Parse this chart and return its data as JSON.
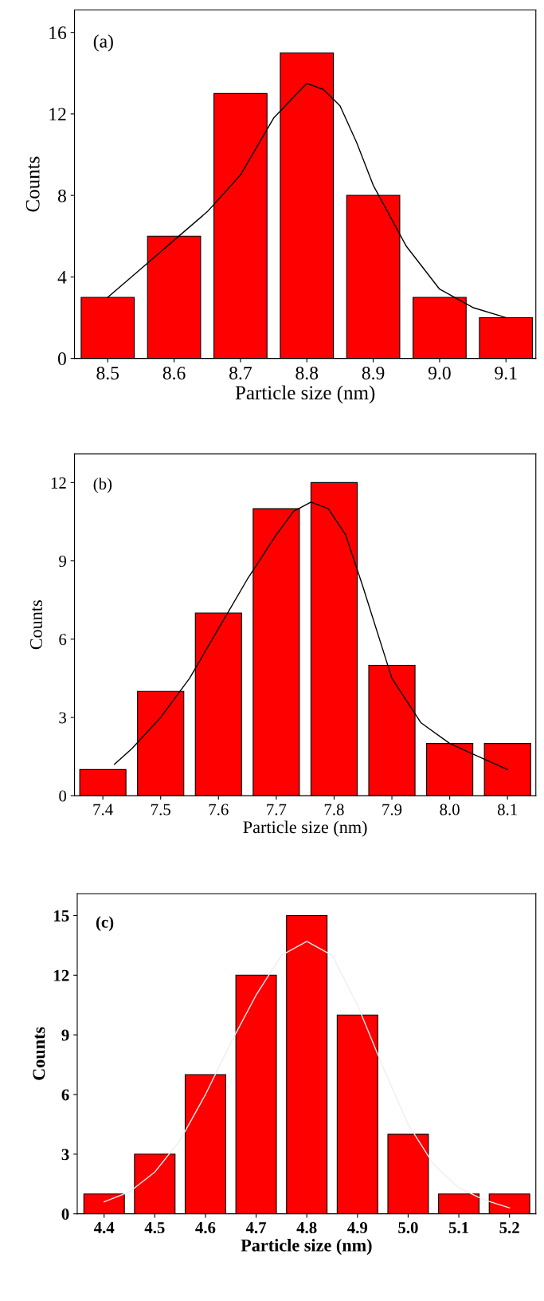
{
  "chart_data": [
    {
      "type": "bar",
      "annotations": [
        "(a)"
      ],
      "xlabel": "Particle size (nm)",
      "ylabel": "Counts",
      "x": [
        8.5,
        8.6,
        8.7,
        8.8,
        8.9,
        9.0,
        9.1
      ],
      "xlim": [
        8.45,
        9.145
      ],
      "xticks": [
        8.5,
        8.6,
        8.7,
        8.8,
        8.9,
        {
          "value": 9.0,
          "label": "9.0"
        },
        9.1
      ],
      "ylim": [
        0,
        17.1
      ],
      "yticks": [
        0,
        4,
        8,
        12,
        16
      ],
      "grid": false,
      "legend": false,
      "series": [
        {
          "color": "#ff0000",
          "values": [
            3,
            6,
            13,
            15,
            8,
            3,
            2
          ]
        },
        {
          "type": "line",
          "color": "#000000",
          "x": [
            8.5,
            8.55,
            8.6,
            8.65,
            8.7,
            8.75,
            8.8,
            8.825,
            8.85,
            8.875,
            8.9,
            8.95,
            9.0,
            9.05,
            9.1
          ],
          "values": [
            3,
            4.4,
            5.8,
            7.2,
            9,
            11.8,
            13.5,
            13.2,
            12.4,
            10.6,
            8.5,
            5.5,
            3.4,
            2.5,
            2
          ]
        }
      ]
    },
    {
      "type": "bar",
      "annotations": [
        "(b)"
      ],
      "xlabel": "Particle size (nm)",
      "ylabel": "Counts",
      "x": [
        7.4,
        7.5,
        7.6,
        7.7,
        7.8,
        7.9,
        8.0,
        8.1
      ],
      "xlim": [
        7.351,
        8.149
      ],
      "xticks": [
        7.4,
        7.5,
        7.6,
        7.7,
        7.8,
        7.9,
        {
          "value": 8.0,
          "label": "8.0"
        },
        8.1
      ],
      "ylim": [
        0,
        13.1
      ],
      "yticks": [
        0,
        3,
        6,
        9,
        12
      ],
      "grid": false,
      "legend": false,
      "series": [
        {
          "color": "#ff0000",
          "values": [
            1,
            4,
            7,
            11,
            12,
            5,
            2,
            2
          ]
        },
        {
          "type": "line",
          "color": "#000000",
          "x": [
            7.42,
            7.45,
            7.5,
            7.55,
            7.6,
            7.65,
            7.7,
            7.73,
            7.76,
            7.79,
            7.82,
            7.85,
            7.9,
            7.95,
            8.0,
            8.05,
            8.1
          ],
          "values": [
            1.2,
            1.8,
            3,
            4.5,
            6.4,
            8.3,
            10,
            10.9,
            11.25,
            11,
            10,
            8,
            4.5,
            2.8,
            2,
            1.5,
            1
          ]
        }
      ]
    },
    {
      "type": "bar",
      "annotations": [
        "(c)"
      ],
      "xlabel": "Particle size (nm)",
      "ylabel": "Counts",
      "x": [
        4.4,
        4.5,
        4.6,
        4.7,
        4.8,
        4.9,
        5.0,
        5.1,
        5.2
      ],
      "xlim": [
        4.347,
        5.252
      ],
      "xticks": [
        4.4,
        4.5,
        4.6,
        4.7,
        4.8,
        4.9,
        {
          "value": 5.0,
          "label": "5.0"
        },
        5.1,
        5.2
      ],
      "ylim": [
        0,
        16.1
      ],
      "yticks": [
        0,
        3,
        6,
        9,
        12,
        15
      ],
      "grid": false,
      "legend": false,
      "series": [
        {
          "color": "#ff0000",
          "values": [
            1,
            3,
            7,
            12,
            15,
            10,
            4,
            1,
            1
          ]
        },
        {
          "type": "line",
          "color": "#eeeeee",
          "x": [
            4.4,
            4.45,
            4.5,
            4.55,
            4.6,
            4.65,
            4.7,
            4.75,
            4.8,
            4.85,
            4.9,
            4.95,
            5.0,
            5.05,
            5.1,
            5.15,
            5.2
          ],
          "values": [
            0.6,
            1.1,
            2.1,
            3.7,
            6,
            8.6,
            11,
            13,
            13.7,
            13,
            10.5,
            7.4,
            4.5,
            2.5,
            1.3,
            0.7,
            0.3
          ]
        }
      ]
    }
  ]
}
